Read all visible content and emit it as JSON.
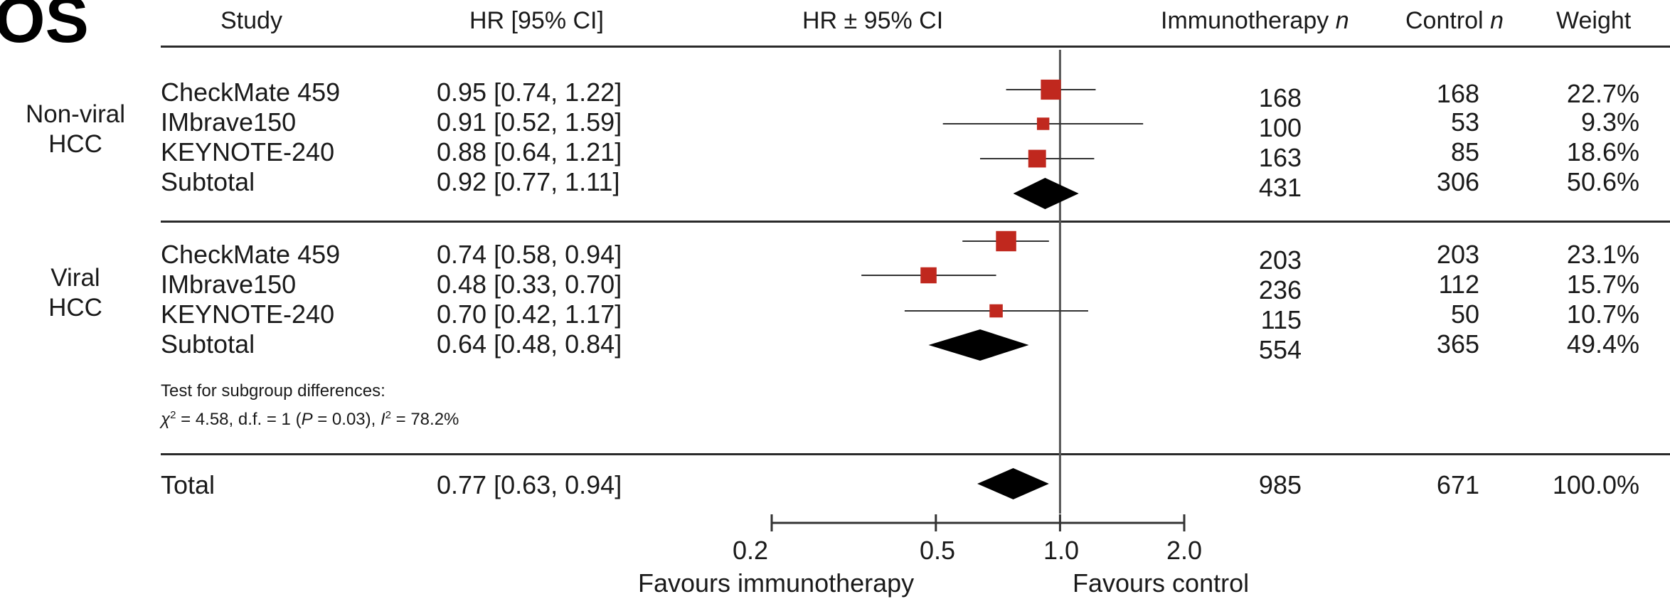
{
  "page_title": "OS",
  "header": {
    "study": "Study",
    "hr_ci": "HR [95% CI]",
    "plot": "HR ± 95% CI",
    "immunotherapy_n": "Immunotherapy",
    "control_n": "Control",
    "n_italic": "n",
    "weight": "Weight"
  },
  "groups": [
    {
      "label_line1": "Non-viral",
      "label_line2": "HCC",
      "rows": [
        {
          "study": "CheckMate 459",
          "hr_text": "0.95 [0.74, 1.22]",
          "immuno_n": "168",
          "control_n": "168",
          "weight": "22.7%"
        },
        {
          "study": "IMbrave150",
          "hr_text": "0.91 [0.52, 1.59]",
          "immuno_n": "100",
          "control_n": "53",
          "weight": "9.3%"
        },
        {
          "study": "KEYNOTE-240",
          "hr_text": "0.88 [0.64, 1.21]",
          "immuno_n": "163",
          "control_n": "85",
          "weight": "18.6%"
        },
        {
          "study": "Subtotal",
          "hr_text": "0.92 [0.77, 1.11]",
          "immuno_n": "431",
          "control_n": "306",
          "weight": "50.6%"
        }
      ]
    },
    {
      "label_line1": "Viral",
      "label_line2": "HCC",
      "rows": [
        {
          "study": "CheckMate 459",
          "hr_text": "0.74 [0.58, 0.94]",
          "immuno_n": "203",
          "control_n": "203",
          "weight": "23.1%"
        },
        {
          "study": "IMbrave150",
          "hr_text": "0.48 [0.33, 0.70]",
          "immuno_n": "236",
          "control_n": "112",
          "weight": "15.7%"
        },
        {
          "study": "KEYNOTE-240",
          "hr_text": "0.70 [0.42, 1.17]",
          "immuno_n": "115",
          "control_n": "50",
          "weight": "10.7%"
        },
        {
          "study": "Subtotal",
          "hr_text": "0.64 [0.48, 0.84]",
          "immuno_n": "554",
          "control_n": "365",
          "weight": "49.4%"
        }
      ]
    }
  ],
  "subgroup_test": {
    "line1": "Test for subgroup differences:",
    "line2_chi": "χ",
    "line2_sup": "2",
    "line2_mid": " = 4.58, d.f. = 1 (",
    "line2_p": "P",
    "line2_pval": " = 0.03), ",
    "line2_i": "I",
    "line2_i_sup": "2",
    "line2_end": " = 78.2%"
  },
  "total": {
    "study": "Total",
    "hr_text": "0.77 [0.63, 0.94]",
    "immuno_n": "985",
    "control_n": "671",
    "weight": "100.0%"
  },
  "axis": {
    "tick_labels": [
      "0.2",
      "0.5",
      "1.0",
      "2.0"
    ],
    "favours_left": "Favours immunotherapy",
    "favours_right": "Favours control"
  },
  "chart_data": {
    "type": "forest",
    "x_scale": "log",
    "xlim": [
      0.2,
      2.0
    ],
    "ticks": [
      0.2,
      0.5,
      1.0,
      2.0
    ],
    "reference_line": 1.0,
    "marker_color": "#c0281e",
    "studies": [
      {
        "group": "Non-viral HCC",
        "name": "CheckMate 459",
        "hr": 0.95,
        "lo": 0.74,
        "hi": 1.22,
        "weight": 22.7
      },
      {
        "group": "Non-viral HCC",
        "name": "IMbrave150",
        "hr": 0.91,
        "lo": 0.52,
        "hi": 1.59,
        "weight": 9.3
      },
      {
        "group": "Non-viral HCC",
        "name": "KEYNOTE-240",
        "hr": 0.88,
        "lo": 0.64,
        "hi": 1.21,
        "weight": 18.6
      },
      {
        "group": "Viral HCC",
        "name": "CheckMate 459",
        "hr": 0.74,
        "lo": 0.58,
        "hi": 0.94,
        "weight": 23.1
      },
      {
        "group": "Viral HCC",
        "name": "IMbrave150",
        "hr": 0.48,
        "lo": 0.33,
        "hi": 0.7,
        "weight": 15.7
      },
      {
        "group": "Viral HCC",
        "name": "KEYNOTE-240",
        "hr": 0.7,
        "lo": 0.42,
        "hi": 1.17,
        "weight": 10.7
      }
    ],
    "summaries": [
      {
        "name": "Non-viral HCC Subtotal",
        "hr": 0.92,
        "lo": 0.77,
        "hi": 1.11
      },
      {
        "name": "Viral HCC Subtotal",
        "hr": 0.64,
        "lo": 0.48,
        "hi": 0.84
      },
      {
        "name": "Total",
        "hr": 0.77,
        "lo": 0.63,
        "hi": 0.94
      }
    ]
  }
}
